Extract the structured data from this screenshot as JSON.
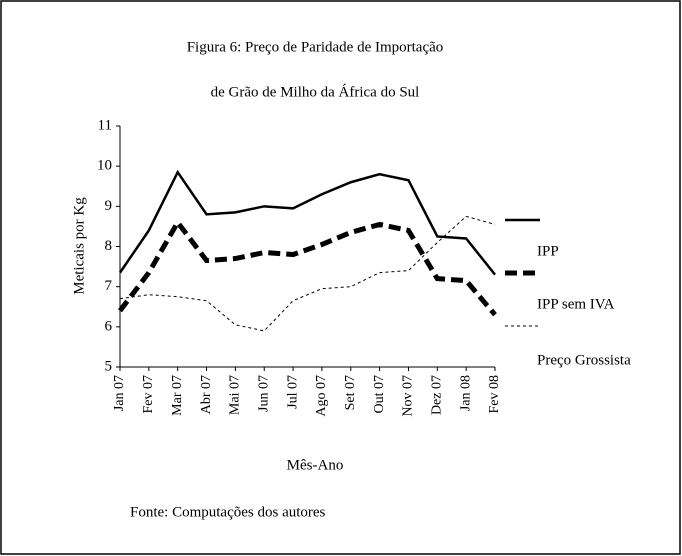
{
  "chart_data": {
    "type": "line",
    "title": [
      "Figura 6: Preço de Paridade de Importação",
      "de Grão de Milho da África do Sul"
    ],
    "x_label": "Mês-Ano",
    "y_label": "Meticais por Kg",
    "source": "Fonte: Computações dos autores",
    "categories": [
      "Jan 07",
      "Fev 07",
      "Mar 07",
      "Abr 07",
      "Mai 07",
      "Jun 07",
      "Jul 07",
      "Ago 07",
      "Set 07",
      "Out 07",
      "Nov 07",
      "Dez 07",
      "Jan 08",
      "Fev 08"
    ],
    "series": [
      {
        "name": "IPP",
        "color": "#000000",
        "style": "solid",
        "values": [
          7.35,
          8.4,
          9.85,
          8.8,
          8.85,
          9.0,
          8.95,
          9.3,
          9.6,
          9.8,
          9.65,
          8.25,
          8.2,
          7.3
        ]
      },
      {
        "name": "IPP sem IVA",
        "color": "#000000",
        "style": "dashed",
        "values": [
          6.4,
          7.35,
          8.6,
          7.65,
          7.7,
          7.85,
          7.8,
          8.05,
          8.35,
          8.55,
          8.4,
          7.2,
          7.15,
          6.3
        ]
      },
      {
        "name": "Preço Grossista",
        "color": "#000000",
        "style": "dotted",
        "values": [
          6.7,
          6.8,
          6.75,
          6.65,
          6.05,
          5.9,
          6.65,
          6.95,
          7.0,
          7.35,
          7.4,
          8.1,
          8.75,
          8.55
        ]
      }
    ],
    "ylim": [
      5,
      11
    ],
    "yticks": [
      5,
      6,
      7,
      8,
      9,
      10,
      11
    ],
    "legend": "right"
  }
}
